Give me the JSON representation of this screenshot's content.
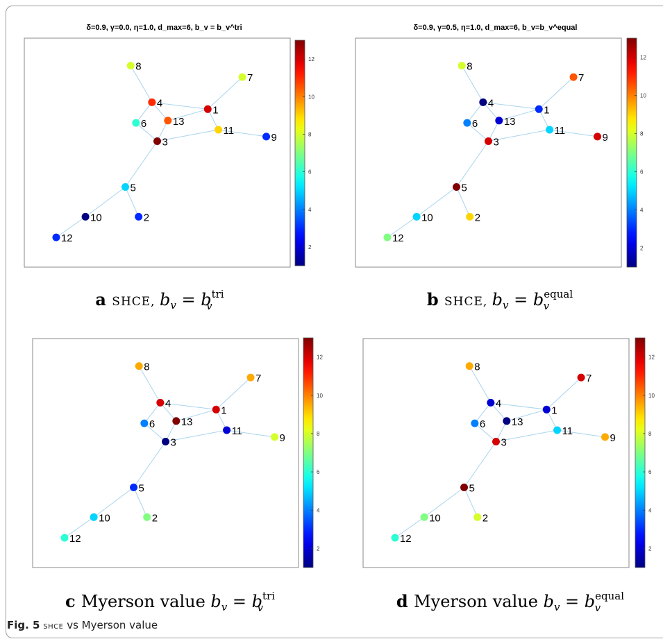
{
  "figure_caption": {
    "label": "Fig. 5",
    "acronym": "SHCE",
    "text": "vs Myerson value"
  },
  "colorbar": {
    "min": 1,
    "max": 13,
    "ticks": [
      2,
      4,
      6,
      8,
      10,
      12
    ],
    "colormap": "jet"
  },
  "chart_data": [
    {
      "type": "scatter",
      "panel": "a",
      "title": "δ=0.9, γ=0.0, η=1.0, d_max=6, b_v = b_v^tri",
      "caption": {
        "letter": "a",
        "method": "SHCE",
        "formula_prefix": "b",
        "formula_sub": "v",
        "formula_eq": "=",
        "formula_sup": "tri"
      },
      "nodes": [
        {
          "id": "1",
          "x": 0.69,
          "y": 0.69,
          "value": 12
        },
        {
          "id": "2",
          "x": 0.43,
          "y": 0.22,
          "value": 3
        },
        {
          "id": "3",
          "x": 0.5,
          "y": 0.55,
          "value": 13
        },
        {
          "id": "4",
          "x": 0.48,
          "y": 0.72,
          "value": 11
        },
        {
          "id": "5",
          "x": 0.38,
          "y": 0.35,
          "value": 5
        },
        {
          "id": "6",
          "x": 0.42,
          "y": 0.63,
          "value": 6
        },
        {
          "id": "7",
          "x": 0.82,
          "y": 0.83,
          "value": 8
        },
        {
          "id": "8",
          "x": 0.4,
          "y": 0.88,
          "value": 8
        },
        {
          "id": "9",
          "x": 0.91,
          "y": 0.57,
          "value": 3
        },
        {
          "id": "10",
          "x": 0.23,
          "y": 0.22,
          "value": 1
        },
        {
          "id": "11",
          "x": 0.73,
          "y": 0.6,
          "value": 9
        },
        {
          "id": "12",
          "x": 0.12,
          "y": 0.13,
          "value": 3
        },
        {
          "id": "13",
          "x": 0.54,
          "y": 0.64,
          "value": 10.5
        }
      ]
    },
    {
      "type": "scatter",
      "panel": "b",
      "title": "δ=0.9, γ=0.5, η=1.0, d_max=6, b_v=b_v^equal",
      "caption": {
        "letter": "b",
        "method": "SHCE",
        "formula_prefix": "b",
        "formula_sub": "v",
        "formula_eq": "=",
        "formula_sup": "equal"
      },
      "nodes": [
        {
          "id": "1",
          "x": 0.69,
          "y": 0.69,
          "value": 3
        },
        {
          "id": "2",
          "x": 0.43,
          "y": 0.22,
          "value": 9
        },
        {
          "id": "3",
          "x": 0.5,
          "y": 0.55,
          "value": 12
        },
        {
          "id": "4",
          "x": 0.48,
          "y": 0.72,
          "value": 1
        },
        {
          "id": "5",
          "x": 0.38,
          "y": 0.35,
          "value": 13
        },
        {
          "id": "6",
          "x": 0.42,
          "y": 0.63,
          "value": 4
        },
        {
          "id": "7",
          "x": 0.82,
          "y": 0.83,
          "value": 10.5
        },
        {
          "id": "8",
          "x": 0.4,
          "y": 0.88,
          "value": 8
        },
        {
          "id": "9",
          "x": 0.91,
          "y": 0.57,
          "value": 12
        },
        {
          "id": "10",
          "x": 0.23,
          "y": 0.22,
          "value": 5
        },
        {
          "id": "11",
          "x": 0.73,
          "y": 0.6,
          "value": 5
        },
        {
          "id": "12",
          "x": 0.12,
          "y": 0.13,
          "value": 7
        },
        {
          "id": "13",
          "x": 0.54,
          "y": 0.64,
          "value": 2
        }
      ]
    },
    {
      "type": "scatter",
      "panel": "c",
      "title": "",
      "caption": {
        "letter": "c",
        "method": "Myerson value",
        "formula_prefix": "b",
        "formula_sub": "v",
        "formula_eq": "=",
        "formula_sup": "tri"
      },
      "nodes": [
        {
          "id": "1",
          "x": 0.69,
          "y": 0.69,
          "value": 12
        },
        {
          "id": "2",
          "x": 0.43,
          "y": 0.22,
          "value": 7
        },
        {
          "id": "3",
          "x": 0.5,
          "y": 0.55,
          "value": 1
        },
        {
          "id": "4",
          "x": 0.48,
          "y": 0.72,
          "value": 12
        },
        {
          "id": "5",
          "x": 0.38,
          "y": 0.35,
          "value": 3
        },
        {
          "id": "6",
          "x": 0.42,
          "y": 0.63,
          "value": 4
        },
        {
          "id": "7",
          "x": 0.82,
          "y": 0.83,
          "value": 9.5
        },
        {
          "id": "8",
          "x": 0.4,
          "y": 0.88,
          "value": 9.5
        },
        {
          "id": "9",
          "x": 0.91,
          "y": 0.57,
          "value": 8
        },
        {
          "id": "10",
          "x": 0.23,
          "y": 0.22,
          "value": 5
        },
        {
          "id": "11",
          "x": 0.73,
          "y": 0.6,
          "value": 2
        },
        {
          "id": "12",
          "x": 0.12,
          "y": 0.13,
          "value": 6
        },
        {
          "id": "13",
          "x": 0.54,
          "y": 0.64,
          "value": 13
        }
      ]
    },
    {
      "type": "scatter",
      "panel": "d",
      "title": "",
      "caption": {
        "letter": "d",
        "method": "Myerson value",
        "formula_prefix": "b",
        "formula_sub": "v",
        "formula_eq": "=",
        "formula_sup": "equal"
      },
      "nodes": [
        {
          "id": "1",
          "x": 0.69,
          "y": 0.69,
          "value": 2
        },
        {
          "id": "2",
          "x": 0.43,
          "y": 0.22,
          "value": 8
        },
        {
          "id": "3",
          "x": 0.5,
          "y": 0.55,
          "value": 12
        },
        {
          "id": "4",
          "x": 0.48,
          "y": 0.72,
          "value": 2
        },
        {
          "id": "5",
          "x": 0.38,
          "y": 0.35,
          "value": 13
        },
        {
          "id": "6",
          "x": 0.42,
          "y": 0.63,
          "value": 4
        },
        {
          "id": "7",
          "x": 0.82,
          "y": 0.83,
          "value": 12
        },
        {
          "id": "8",
          "x": 0.4,
          "y": 0.88,
          "value": 9.5
        },
        {
          "id": "9",
          "x": 0.91,
          "y": 0.57,
          "value": 9.5
        },
        {
          "id": "10",
          "x": 0.23,
          "y": 0.22,
          "value": 7
        },
        {
          "id": "11",
          "x": 0.73,
          "y": 0.6,
          "value": 5
        },
        {
          "id": "12",
          "x": 0.12,
          "y": 0.13,
          "value": 6
        },
        {
          "id": "13",
          "x": 0.54,
          "y": 0.64,
          "value": 1
        }
      ]
    }
  ],
  "edges": [
    [
      "8",
      "4"
    ],
    [
      "4",
      "1"
    ],
    [
      "4",
      "6"
    ],
    [
      "4",
      "13"
    ],
    [
      "1",
      "7"
    ],
    [
      "1",
      "13"
    ],
    [
      "1",
      "11"
    ],
    [
      "6",
      "3"
    ],
    [
      "13",
      "3"
    ],
    [
      "3",
      "11"
    ],
    [
      "11",
      "9"
    ],
    [
      "3",
      "5"
    ],
    [
      "5",
      "10"
    ],
    [
      "5",
      "2"
    ],
    [
      "10",
      "12"
    ]
  ]
}
